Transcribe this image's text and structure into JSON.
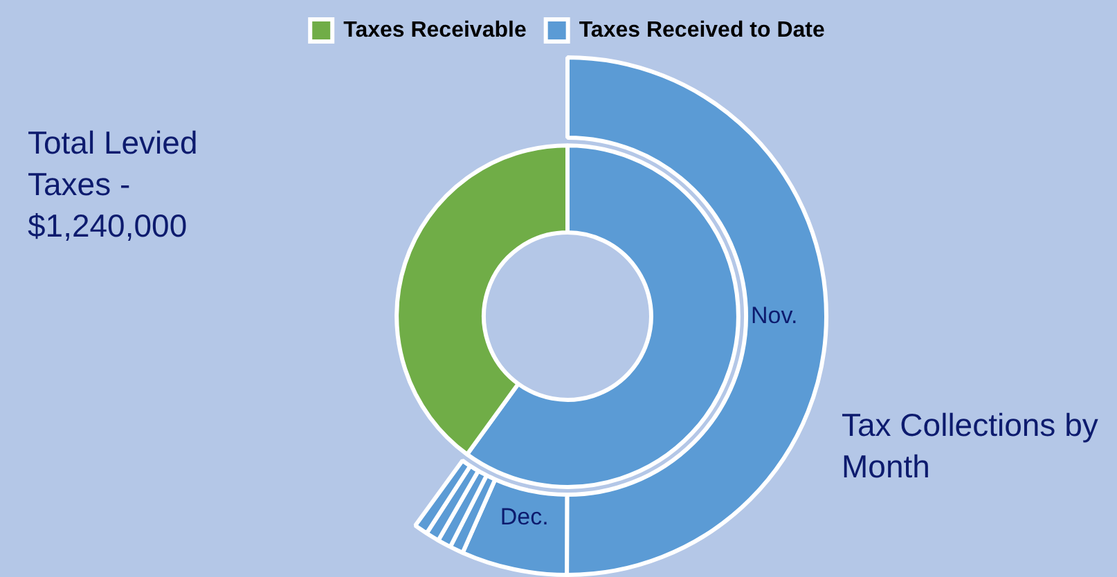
{
  "chart_data": [
    {
      "type": "donut",
      "legend": "top",
      "annotations": [
        "Total Levied Taxes - $1,240,000"
      ],
      "categories": [
        "Taxes Received to Date",
        "Taxes Receivable"
      ],
      "values": [
        60,
        40
      ],
      "colors": [
        "#5b9bd5",
        "#70ad47"
      ]
    },
    {
      "type": "donut",
      "annotations": [
        "Tax Collections by Month"
      ],
      "categories": [
        "Nov.",
        "Dec.",
        null,
        null,
        null,
        null
      ],
      "values": [
        83.4,
        11,
        1.4,
        1.4,
        1.4,
        1.4
      ],
      "colors": [
        "#5b9bd5",
        "#5b9bd5",
        "#5b9bd5",
        "#5b9bd5",
        "#5b9bd5",
        "#5b9bd5"
      ]
    }
  ]
}
